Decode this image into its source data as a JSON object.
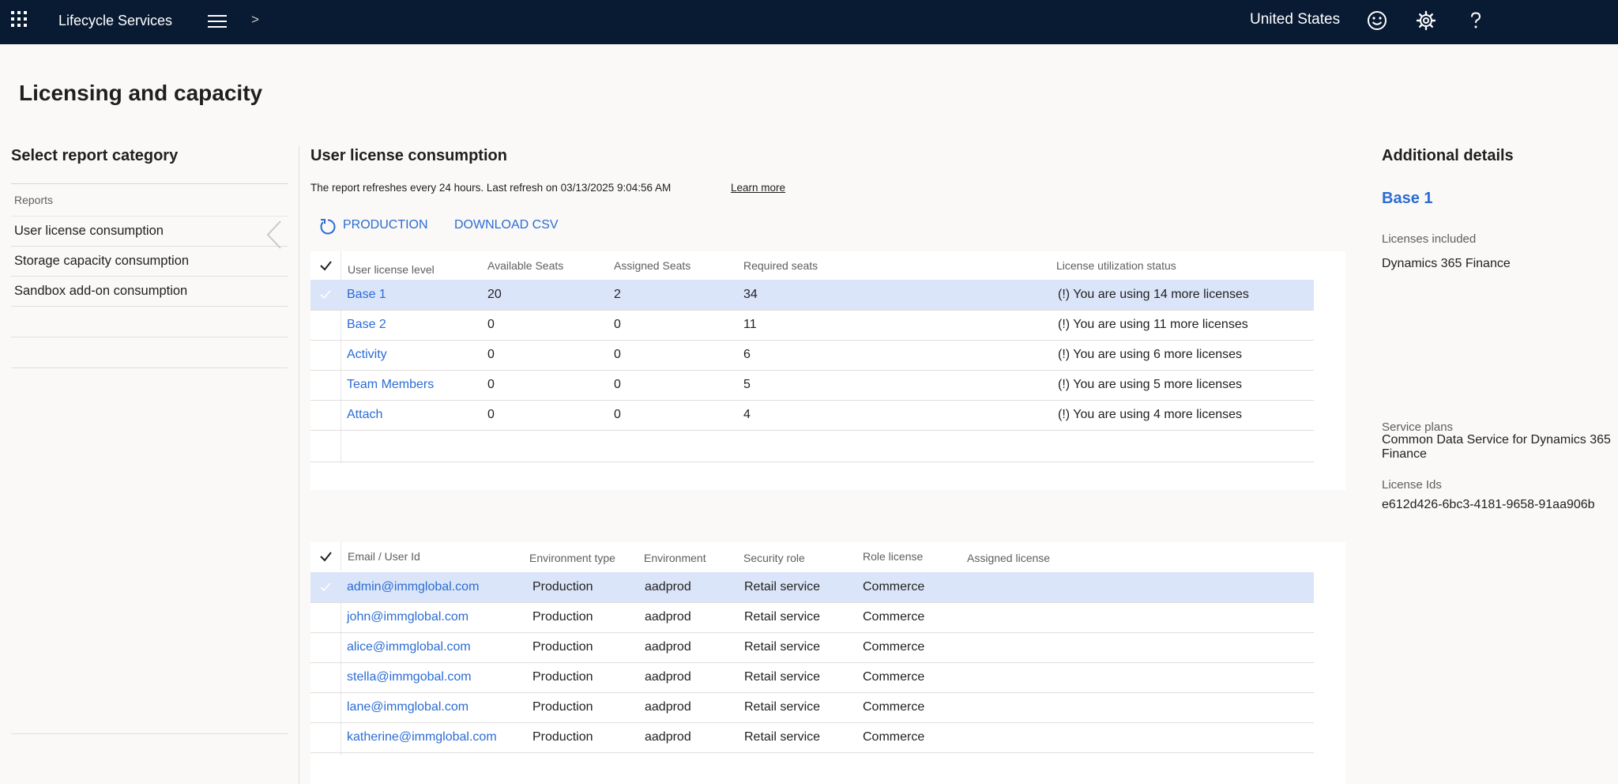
{
  "topbar": {
    "app_title": "Lifecycle Services",
    "breadcrumb_separator": ">",
    "region": "United States",
    "icons": [
      "apps-waffle-icon",
      "hamburger-menu-icon",
      "smiley-feedback-icon",
      "gear-icon",
      "help-icon"
    ]
  },
  "page_title": "Licensing and capacity",
  "left_panel": {
    "title": "Select report category",
    "group_label": "Reports",
    "items": [
      "User license consumption",
      "Storage capacity consumption",
      "Sandbox add-on consumption"
    ],
    "selected_item": "User license consumption"
  },
  "main": {
    "title": "User license consumption",
    "refresh_text": "The report refreshes every 24 hours. Last refresh on 03/13/2025 9:04:56 AM",
    "learn_more": "Learn more",
    "actions": {
      "production": "PRODUCTION",
      "download_csv": "DOWNLOAD CSV"
    },
    "license_table": {
      "columns": [
        "User license level",
        "Available Seats",
        "Assigned Seats",
        "Required seats",
        "License utilization status"
      ],
      "rows": [
        {
          "level": "Base 1",
          "available": "20",
          "assigned": "2",
          "required": "34",
          "status": "(!) You are using 14 more licenses"
        },
        {
          "level": "Base 2",
          "available": "0",
          "assigned": "0",
          "required": "11",
          "status": "(!) You are using 11 more licenses"
        },
        {
          "level": "Activity",
          "available": "0",
          "assigned": "0",
          "required": "6",
          "status": "(!) You are using 6 more licenses"
        },
        {
          "level": "Team Members",
          "available": "0",
          "assigned": "0",
          "required": "5",
          "status": "(!) You are using 5 more licenses"
        },
        {
          "level": "Attach",
          "available": "0",
          "assigned": "0",
          "required": "4",
          "status": "(!) You are using 4 more licenses"
        }
      ],
      "selected_row": 0
    },
    "user_table": {
      "columns": [
        "Email / User Id",
        "Environment type",
        "Environment",
        "Security role",
        "Role license",
        "Assigned license"
      ],
      "rows": [
        {
          "email": "admin@immglobal.com",
          "env_type": "Production",
          "env": "aadprod",
          "role": "Retail service",
          "role_license": "Commerce",
          "assigned": ""
        },
        {
          "email": "john@immglobal.com",
          "env_type": "Production",
          "env": "aadprod",
          "role": "Retail service",
          "role_license": "Commerce",
          "assigned": ""
        },
        {
          "email": "alice@immglobal.com",
          "env_type": "Production",
          "env": "aadprod",
          "role": "Retail service",
          "role_license": "Commerce",
          "assigned": ""
        },
        {
          "email": "stella@immgobal.com",
          "env_type": "Production",
          "env": "aadprod",
          "role": "Retail service",
          "role_license": "Commerce",
          "assigned": ""
        },
        {
          "email": "lane@immglobal.com",
          "env_type": "Production",
          "env": "aadprod",
          "role": "Retail service",
          "role_license": "Commerce",
          "assigned": ""
        },
        {
          "email": "katherine@immglobal.com",
          "env_type": "Production",
          "env": "aadprod",
          "role": "Retail service",
          "role_license": "Commerce",
          "assigned": ""
        }
      ],
      "selected_row": 0
    }
  },
  "details": {
    "title": "Additional details",
    "selected_license": "Base 1",
    "licenses_included_label": "Licenses included",
    "licenses_included_value": "Dynamics 365 Finance",
    "service_plans_label": "Service plans",
    "service_plans_value_line1": "Common Data Service for Dynamics 365",
    "service_plans_value_line2": "Finance",
    "license_ids_label": "License Ids",
    "license_ids_value": "e612d426-6bc3-4181-9658-91aa906b"
  },
  "colors": {
    "topbar": "#091a33",
    "accent": "#2b6cd4",
    "selected_row": "#dbe5f9",
    "background": "#faf9f8"
  }
}
